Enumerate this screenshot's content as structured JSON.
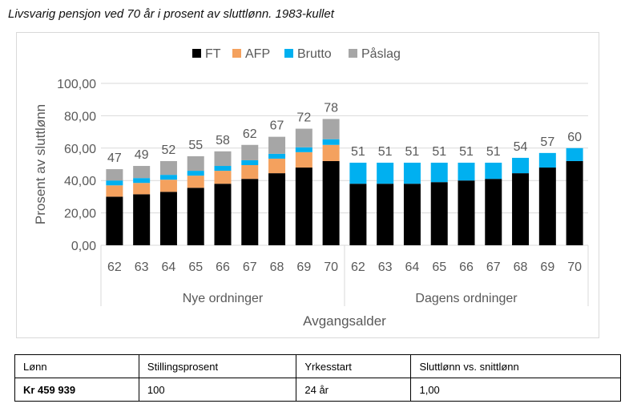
{
  "title": "Livsvarig pensjon ved 70 år i prosent av sluttlønn. 1983-kullet",
  "colors": {
    "FT": "#000000",
    "AFP": "#f4a15e",
    "Brutto": "#00b0f0",
    "Paslag": "#a6a6a6",
    "text": "#595959",
    "grid": "#d9d9d9"
  },
  "chart_data": {
    "type": "bar",
    "stacked": true,
    "legend_position": "top",
    "grid": true,
    "ylabel": "Prosent av sluttlønn",
    "xlabel": "Avgangsalder",
    "ylim": [
      0,
      100
    ],
    "yticks": [
      "0,00",
      "20,00",
      "40,00",
      "60,00",
      "80,00",
      "100,00"
    ],
    "groups": [
      "Nye ordninger",
      "Dagens ordninger"
    ],
    "categories": [
      "62",
      "63",
      "64",
      "65",
      "66",
      "67",
      "68",
      "69",
      "70",
      "62",
      "63",
      "64",
      "65",
      "66",
      "67",
      "68",
      "69",
      "70"
    ],
    "group_of_category": [
      0,
      0,
      0,
      0,
      0,
      0,
      0,
      0,
      0,
      1,
      1,
      1,
      1,
      1,
      1,
      1,
      1,
      1
    ],
    "series": [
      {
        "name": "FT",
        "color_key": "FT",
        "values": [
          30,
          31.5,
          33,
          35.5,
          38,
          41,
          44.5,
          48,
          52,
          38,
          38,
          38,
          39,
          40,
          41,
          44.5,
          48,
          52
        ]
      },
      {
        "name": "AFP",
        "color_key": "AFP",
        "values": [
          7,
          7,
          7.5,
          7.5,
          8,
          8.5,
          9,
          9.5,
          10,
          0,
          0,
          0,
          0,
          0,
          0,
          0,
          0,
          0
        ]
      },
      {
        "name": "Brutto",
        "color_key": "Brutto",
        "values": [
          3,
          3,
          3,
          3,
          3,
          3,
          3,
          3,
          3.5,
          13,
          13,
          13,
          12,
          11,
          10,
          9.5,
          9,
          8
        ]
      },
      {
        "name": "Påslag",
        "color_key": "Paslag",
        "values": [
          7,
          7.5,
          8.5,
          9,
          9,
          9.5,
          10.5,
          11.5,
          12.5,
          0,
          0,
          0,
          0,
          0,
          0,
          0,
          0,
          0
        ]
      }
    ],
    "totals": [
      "47",
      "49",
      "52",
      "55",
      "58",
      "62",
      "67",
      "72",
      "78",
      "51",
      "51",
      "51",
      "51",
      "51",
      "51",
      "54",
      "57",
      "60"
    ]
  },
  "info_table": {
    "headers": [
      "Lønn",
      "Stillingsprosent",
      "Yrkesstart",
      "Sluttlønn vs. snittlønn"
    ],
    "values": [
      "Kr 459 939",
      "100",
      "24 år",
      "1,00"
    ]
  }
}
